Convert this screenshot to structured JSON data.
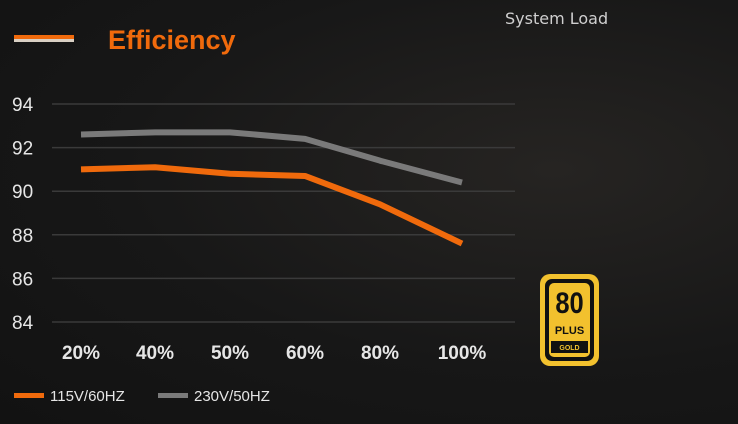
{
  "chart_data": {
    "type": "line",
    "title": "Efficiency",
    "xlabel": "System Load",
    "ylabel": "",
    "categories": [
      "20%",
      "40%",
      "50%",
      "60%",
      "80%",
      "100%"
    ],
    "ylim": [
      84,
      94
    ],
    "yticks": [
      94,
      92,
      90,
      88,
      86,
      84
    ],
    "grid": true,
    "legend_position": "bottom-left",
    "series": [
      {
        "name": "115V/60HZ",
        "color": "#f06a0c",
        "values": [
          91.0,
          91.1,
          90.8,
          90.7,
          89.4,
          87.6
        ]
      },
      {
        "name": "230V/50HZ",
        "color": "#7a7a7a",
        "values": [
          92.6,
          92.7,
          92.7,
          92.4,
          91.4,
          90.4
        ]
      }
    ]
  },
  "badge": {
    "name": "80 PLUS GOLD",
    "text_top": "80",
    "text_mid": "PLUS",
    "text_bottom": "GOLD",
    "color": "#f2c12e"
  },
  "colors": {
    "accent": "#f06a0c",
    "text": "#e6e6e6",
    "grid": "#3a3a3a"
  }
}
